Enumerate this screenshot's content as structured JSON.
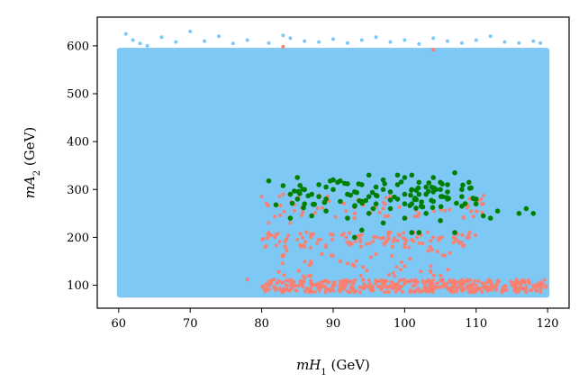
{
  "chart_data": {
    "type": "scatter",
    "title": "",
    "xlabel": "mH1 (GeV)",
    "ylabel": "mA2 (GeV)",
    "xlabel_parts": {
      "base": "mH",
      "sub": "1",
      "unit": " (GeV)"
    },
    "ylabel_parts": {
      "base": "mA",
      "sub": "2",
      "unit": " (GeV)"
    },
    "xlim": [
      57,
      123
    ],
    "ylim": [
      52,
      660
    ],
    "xticks": [
      60,
      70,
      80,
      90,
      100,
      110,
      120
    ],
    "yticks": [
      100,
      200,
      300,
      400,
      500,
      600
    ],
    "grid": false,
    "legend": "none",
    "series": [
      {
        "color": "#7ec8f5",
        "region": {
          "x": [
            60,
            120
          ],
          "y": [
            78,
            592
          ]
        },
        "points": [
          [
            61,
            625
          ],
          [
            62,
            612
          ],
          [
            63,
            605
          ],
          [
            64,
            600
          ],
          [
            66,
            618
          ],
          [
            68,
            608
          ],
          [
            70,
            630
          ],
          [
            72,
            610
          ],
          [
            74,
            620
          ],
          [
            76,
            605
          ],
          [
            78,
            612
          ],
          [
            81,
            606
          ],
          [
            83,
            622
          ],
          [
            84,
            616
          ],
          [
            86,
            610
          ],
          [
            88,
            608
          ],
          [
            90,
            614
          ],
          [
            92,
            606
          ],
          [
            94,
            612
          ],
          [
            96,
            618
          ],
          [
            98,
            608
          ],
          [
            100,
            612
          ],
          [
            102,
            604
          ],
          [
            104,
            616
          ],
          [
            106,
            610
          ],
          [
            108,
            606
          ],
          [
            110,
            612
          ],
          [
            112,
            620
          ],
          [
            114,
            608
          ],
          [
            116,
            606
          ],
          [
            118,
            610
          ],
          [
            119,
            606
          ]
        ]
      },
      {
        "color": "#fa8072",
        "points": [
          [
            78,
            112
          ],
          [
            80,
            285
          ],
          [
            81,
            230
          ],
          [
            82,
            205
          ],
          [
            83,
            290
          ],
          [
            84,
            230
          ],
          [
            85,
            195
          ],
          [
            86,
            180
          ],
          [
            86,
            115
          ],
          [
            87,
            100
          ],
          [
            88,
            195
          ],
          [
            89,
            180
          ],
          [
            90,
            205
          ],
          [
            90,
            100
          ],
          [
            91,
            150
          ],
          [
            92,
            190
          ],
          [
            93,
            240
          ],
          [
            93,
            140
          ],
          [
            94,
            205
          ],
          [
            95,
            110
          ],
          [
            96,
            165
          ],
          [
            97,
            260
          ],
          [
            98,
            210
          ],
          [
            99,
            100
          ],
          [
            100,
            140
          ],
          [
            101,
            195
          ],
          [
            102,
            250
          ],
          [
            103,
            90
          ],
          [
            104,
            200
          ],
          [
            105,
            120
          ],
          [
            106,
            95
          ],
          [
            107,
            210
          ],
          [
            108,
            100
          ],
          [
            109,
            200
          ],
          [
            110,
            100
          ],
          [
            111,
            270
          ],
          [
            112,
            95
          ],
          [
            113,
            110
          ],
          [
            114,
            90
          ],
          [
            115,
            100
          ],
          [
            116,
            95
          ],
          [
            117,
            90
          ],
          [
            118,
            100
          ],
          [
            119,
            90
          ],
          [
            83,
            598
          ],
          [
            104,
            592
          ]
        ],
        "bands": [
          {
            "x": [
              80,
              120
            ],
            "y": [
              85,
              112
            ],
            "n": 420
          },
          {
            "x": [
              80,
              110
            ],
            "y": [
              178,
              212
            ],
            "n": 110
          },
          {
            "x": [
              80,
              112
            ],
            "y": [
              240,
              290
            ],
            "n": 70
          },
          {
            "x": [
              82,
              108
            ],
            "y": [
              118,
              175
            ],
            "n": 45
          }
        ]
      },
      {
        "color": "#008000",
        "points": [
          [
            81,
            318
          ],
          [
            82,
            268
          ],
          [
            83,
            308
          ],
          [
            84,
            290
          ],
          [
            84,
            240
          ],
          [
            85,
            325
          ],
          [
            86,
            300
          ],
          [
            86,
            270
          ],
          [
            87,
            245
          ],
          [
            88,
            310
          ],
          [
            88,
            285
          ],
          [
            89,
            255
          ],
          [
            90,
            320
          ],
          [
            90,
            300
          ],
          [
            91,
            275
          ],
          [
            92,
            312
          ],
          [
            92,
            240
          ],
          [
            93,
            295
          ],
          [
            93,
            265
          ],
          [
            94,
            310
          ],
          [
            94,
            215
          ],
          [
            95,
            285
          ],
          [
            95,
            250
          ],
          [
            96,
            305
          ],
          [
            96,
            270
          ],
          [
            97,
            320
          ],
          [
            97,
            230
          ],
          [
            98,
            295
          ],
          [
            98,
            260
          ],
          [
            99,
            310
          ],
          [
            99,
            280
          ],
          [
            100,
            325
          ],
          [
            100,
            240
          ],
          [
            101,
            300
          ],
          [
            101,
            270
          ],
          [
            102,
            315
          ],
          [
            102,
            210
          ],
          [
            103,
            290
          ],
          [
            103,
            250
          ],
          [
            104,
            325
          ],
          [
            104,
            275
          ],
          [
            105,
            300
          ],
          [
            105,
            235
          ],
          [
            106,
            310
          ],
          [
            106,
            280
          ],
          [
            107,
            335
          ],
          [
            107,
            210
          ],
          [
            108,
            300
          ],
          [
            108,
            265
          ],
          [
            109,
            315
          ],
          [
            110,
            280
          ],
          [
            111,
            245
          ],
          [
            112,
            240
          ],
          [
            113,
            255
          ],
          [
            116,
            250
          ],
          [
            117,
            260
          ],
          [
            118,
            250
          ],
          [
            91,
            318
          ],
          [
            95,
            330
          ],
          [
            99,
            330
          ],
          [
            101,
            330
          ],
          [
            103,
            305
          ],
          [
            105,
            315
          ],
          [
            85,
            280
          ],
          [
            89,
            305
          ],
          [
            97,
            300
          ],
          [
            100,
            290
          ],
          [
            102,
            290
          ],
          [
            104,
            295
          ],
          [
            96,
            288
          ],
          [
            98,
            278
          ],
          [
            100,
            270
          ],
          [
            92,
            290
          ],
          [
            94,
            275
          ],
          [
            87,
            290
          ],
          [
            89,
            280
          ],
          [
            106,
            295
          ],
          [
            108,
            285
          ],
          [
            93,
            200
          ],
          [
            101,
            210
          ]
        ],
        "bands": [
          {
            "x": [
              82,
              110
            ],
            "y": [
              260,
              318
            ],
            "n": 60
          }
        ]
      }
    ]
  }
}
